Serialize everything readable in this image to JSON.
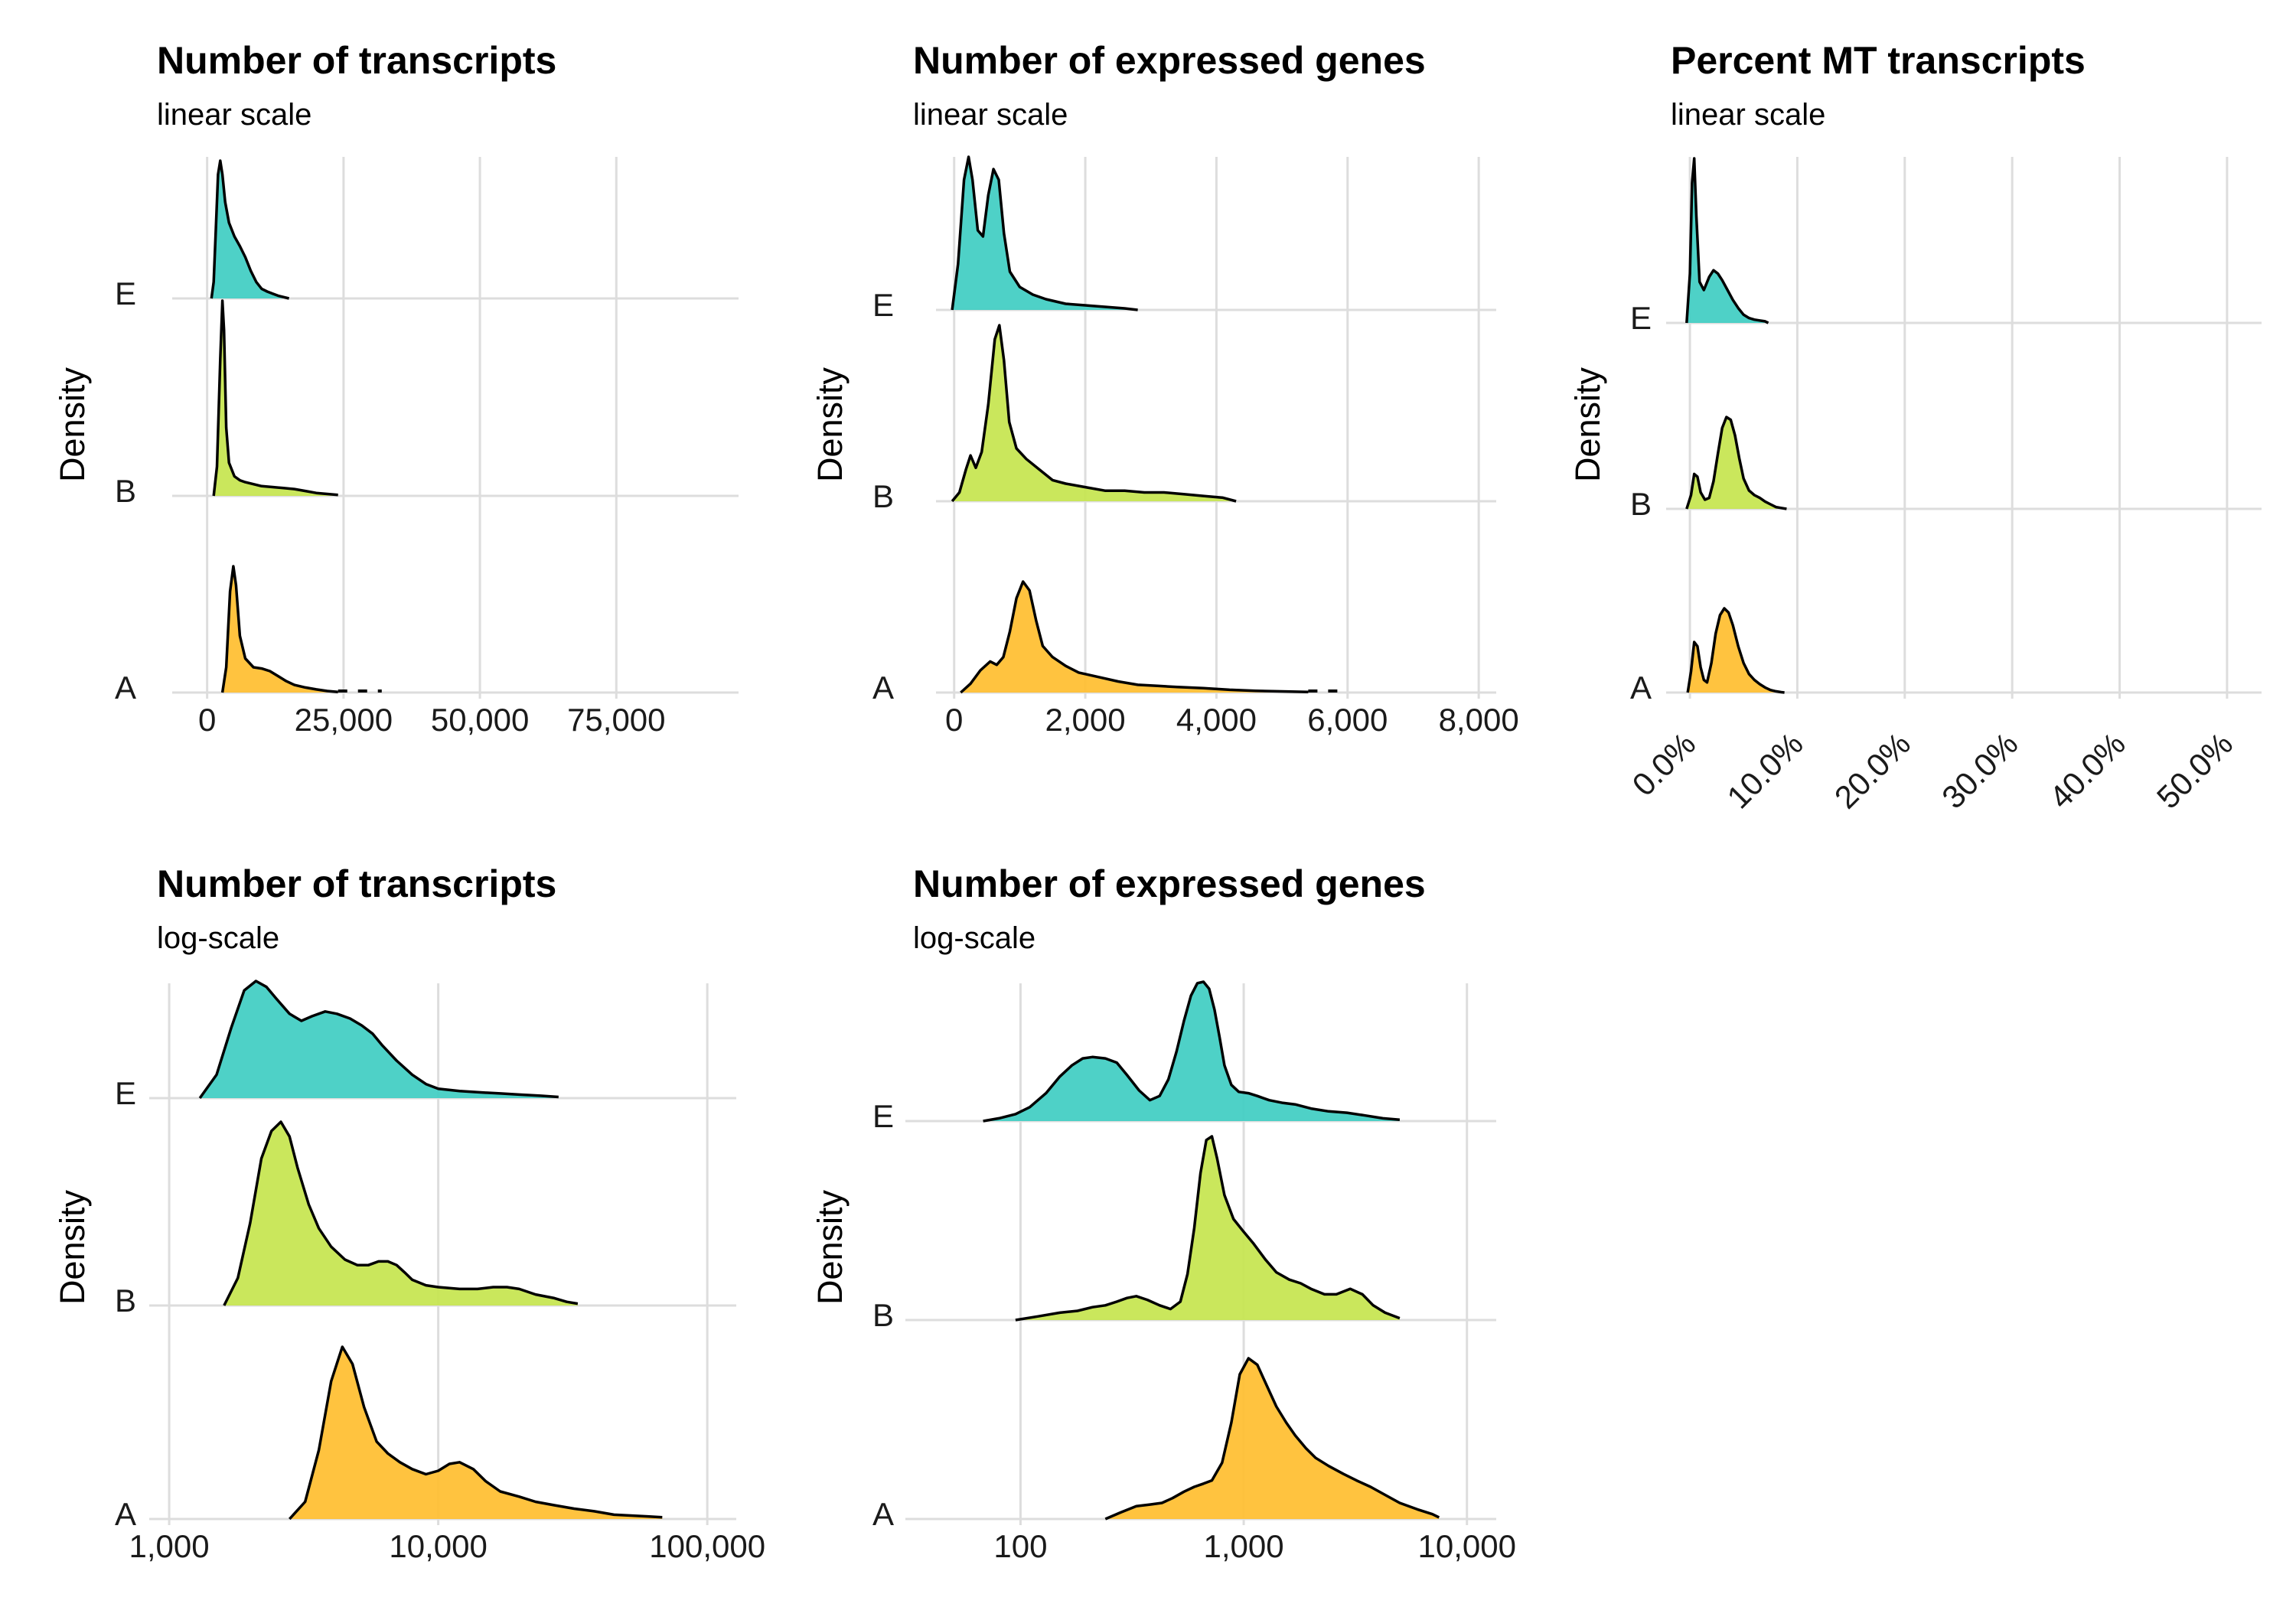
{
  "figure": {
    "background": "#ffffff"
  },
  "colors": {
    "A": "#FFBE2F",
    "B": "#C6E54E",
    "E": "#3FCDC2",
    "outline": "#000000",
    "grid": "#dddddd"
  },
  "panels": [
    {
      "title": "Number of transcripts",
      "subtitle": "linear scale",
      "ylabel": "Density"
    },
    {
      "title": "Number of expressed genes",
      "subtitle": "linear scale",
      "ylabel": "Density"
    },
    {
      "title": "Percent MT transcripts",
      "subtitle": "linear scale",
      "ylabel": "Density"
    },
    {
      "title": "Number of transcripts",
      "subtitle": "log-scale",
      "ylabel": "Density"
    },
    {
      "title": "Number of expressed genes",
      "subtitle": "log-scale",
      "ylabel": "Density"
    }
  ],
  "chart_data": [
    {
      "type": "ridgeline",
      "title": "Number of transcripts",
      "subtitle": "linear scale",
      "ylabel": "Density",
      "xscale": "linear",
      "xlim": [
        -5000,
        96000
      ],
      "xticks": [
        0,
        25000,
        50000,
        75000
      ],
      "xtick_labels": [
        "0",
        "25,000",
        "50,000",
        "75,000"
      ],
      "groups": [
        "A",
        "B",
        "E"
      ],
      "grid": true,
      "series": [
        {
          "name": "A",
          "x": [
            2800,
            3500,
            4200,
            4800,
            5300,
            6000,
            7000,
            8500,
            10000,
            11500,
            13000,
            14500,
            16000,
            18000,
            20000,
            22000,
            24000
          ],
          "y": [
            0,
            0.2,
            0.8,
            1.0,
            0.85,
            0.45,
            0.27,
            0.2,
            0.19,
            0.17,
            0.13,
            0.09,
            0.06,
            0.04,
            0.025,
            0.012,
            0.005
          ],
          "tail_to": 32000
        },
        {
          "name": "B",
          "x": [
            1200,
            1800,
            2400,
            2800,
            3100,
            3500,
            4000,
            5000,
            6000,
            7000,
            8500,
            10000,
            12000,
            14000,
            16000,
            18000,
            20000,
            22000,
            24000
          ],
          "y": [
            0,
            0.15,
            0.7,
            1.0,
            0.85,
            0.35,
            0.17,
            0.1,
            0.08,
            0.07,
            0.06,
            0.05,
            0.045,
            0.04,
            0.035,
            0.025,
            0.015,
            0.01,
            0.005
          ]
        },
        {
          "name": "E",
          "x": [
            800,
            1200,
            1600,
            2000,
            2400,
            2800,
            3300,
            4000,
            5000,
            6000,
            7000,
            8000,
            9000,
            10000,
            11000,
            12000,
            13000,
            14000,
            15000
          ],
          "y": [
            0,
            0.12,
            0.5,
            0.9,
            1.0,
            0.9,
            0.7,
            0.55,
            0.45,
            0.38,
            0.3,
            0.2,
            0.12,
            0.07,
            0.05,
            0.035,
            0.02,
            0.01,
            0
          ]
        }
      ]
    },
    {
      "type": "ridgeline",
      "title": "Number of expressed genes",
      "subtitle": "linear scale",
      "ylabel": "Density",
      "xscale": "linear",
      "xlim": [
        -160,
        8150
      ],
      "xticks": [
        0,
        2000,
        4000,
        6000,
        8000
      ],
      "xtick_labels": [
        "0",
        "2,000",
        "4,000",
        "6,000",
        "8,000"
      ],
      "groups": [
        "A",
        "B",
        "E"
      ],
      "grid": true,
      "series": [
        {
          "name": "A",
          "x": [
            100,
            250,
            400,
            550,
            650,
            750,
            850,
            950,
            1050,
            1150,
            1250,
            1350,
            1500,
            1700,
            1900,
            2200,
            2500,
            2800,
            3100,
            3400,
            3800,
            4200,
            4600,
            5000,
            5400
          ],
          "y": [
            0,
            0.08,
            0.2,
            0.28,
            0.25,
            0.32,
            0.55,
            0.85,
            1.0,
            0.92,
            0.65,
            0.42,
            0.32,
            0.24,
            0.18,
            0.14,
            0.1,
            0.07,
            0.06,
            0.05,
            0.04,
            0.025,
            0.015,
            0.01,
            0.005
          ],
          "tail_to": 6000
        },
        {
          "name": "B",
          "x": [
            -30,
            80,
            180,
            250,
            330,
            420,
            520,
            620,
            690,
            760,
            840,
            950,
            1100,
            1300,
            1500,
            1700,
            2000,
            2300,
            2600,
            2900,
            3200,
            3500,
            3800,
            4100,
            4300
          ],
          "y": [
            0,
            0.05,
            0.18,
            0.26,
            0.19,
            0.28,
            0.55,
            0.92,
            1.0,
            0.8,
            0.45,
            0.3,
            0.24,
            0.18,
            0.12,
            0.1,
            0.08,
            0.06,
            0.06,
            0.05,
            0.05,
            0.04,
            0.03,
            0.02,
            0
          ]
        },
        {
          "name": "E",
          "x": [
            -30,
            60,
            150,
            220,
            280,
            360,
            440,
            520,
            600,
            680,
            760,
            850,
            1000,
            1200,
            1400,
            1700,
            2000,
            2300,
            2600,
            2800
          ],
          "y": [
            0,
            0.3,
            0.85,
            1.0,
            0.85,
            0.52,
            0.48,
            0.75,
            0.92,
            0.85,
            0.5,
            0.25,
            0.15,
            0.1,
            0.07,
            0.04,
            0.03,
            0.02,
            0.01,
            0
          ]
        }
      ]
    },
    {
      "type": "ridgeline",
      "title": "Percent MT transcripts",
      "subtitle": "linear scale",
      "ylabel": "Density",
      "xscale": "linear",
      "xlim": [
        -1.5,
        52.5
      ],
      "xticks": [
        0,
        10,
        20,
        30,
        40,
        50
      ],
      "xtick_labels": [
        "0.0%",
        "10.0%",
        "20.0%",
        "30.0%",
        "40.0%",
        "50.0%"
      ],
      "xtick_rotation": 45,
      "groups": [
        "A",
        "B",
        "E"
      ],
      "grid": true,
      "series": [
        {
          "name": "A",
          "x": [
            -0.2,
            0.1,
            0.4,
            0.7,
            1.0,
            1.3,
            1.6,
            2.0,
            2.4,
            2.8,
            3.2,
            3.6,
            4.0,
            4.5,
            5.0,
            5.5,
            6.0,
            6.5,
            7.0,
            7.5,
            8.0,
            8.5,
            8.8
          ],
          "y": [
            0,
            0.25,
            0.6,
            0.55,
            0.3,
            0.15,
            0.12,
            0.35,
            0.7,
            0.92,
            1.0,
            0.95,
            0.8,
            0.55,
            0.35,
            0.22,
            0.15,
            0.1,
            0.06,
            0.03,
            0.015,
            0.005,
            0
          ]
        },
        {
          "name": "B",
          "x": [
            -0.3,
            0.1,
            0.4,
            0.7,
            1.0,
            1.4,
            1.8,
            2.2,
            2.6,
            3.0,
            3.4,
            3.8,
            4.2,
            4.6,
            5.0,
            5.5,
            6.0,
            6.5,
            7.0,
            7.5,
            8.0,
            8.5,
            9.0
          ],
          "y": [
            0,
            0.15,
            0.38,
            0.35,
            0.18,
            0.1,
            0.12,
            0.3,
            0.6,
            0.88,
            1.0,
            0.97,
            0.8,
            0.55,
            0.33,
            0.2,
            0.15,
            0.12,
            0.08,
            0.05,
            0.02,
            0.01,
            0
          ]
        },
        {
          "name": "E",
          "x": [
            -0.3,
            0.0,
            0.2,
            0.4,
            0.6,
            0.9,
            1.3,
            1.8,
            2.2,
            2.6,
            3.0,
            3.5,
            4.0,
            4.5,
            5.0,
            5.5,
            6.0,
            6.5,
            7.0,
            7.3
          ],
          "y": [
            0,
            0.3,
            0.85,
            1.0,
            0.65,
            0.25,
            0.2,
            0.28,
            0.32,
            0.3,
            0.26,
            0.2,
            0.14,
            0.09,
            0.05,
            0.03,
            0.02,
            0.015,
            0.01,
            0
          ]
        }
      ]
    },
    {
      "type": "ridgeline",
      "title": "Number of transcripts",
      "subtitle": "log-scale",
      "ylabel": "Density",
      "xscale": "log",
      "xlim": [
        900,
        120000
      ],
      "xticks": [
        1000,
        10000,
        100000
      ],
      "xtick_labels": [
        "1,000",
        "10,000",
        "100,000"
      ],
      "groups": [
        "A",
        "B",
        "E"
      ],
      "grid": true,
      "series": [
        {
          "name": "A",
          "x": [
            2800,
            3200,
            3600,
            4000,
            4400,
            4800,
            5300,
            5900,
            6500,
            7200,
            8000,
            9000,
            10000,
            11000,
            12000,
            13500,
            15000,
            17000,
            20000,
            23000,
            27000,
            32000,
            38000,
            45000,
            52000,
            60000,
            68000
          ],
          "y": [
            0,
            0.1,
            0.4,
            0.8,
            1.0,
            0.9,
            0.65,
            0.45,
            0.38,
            0.33,
            0.29,
            0.26,
            0.28,
            0.32,
            0.33,
            0.29,
            0.22,
            0.16,
            0.13,
            0.1,
            0.08,
            0.06,
            0.045,
            0.025,
            0.02,
            0.015,
            0.01
          ]
        },
        {
          "name": "B",
          "x": [
            1600,
            1800,
            2000,
            2200,
            2400,
            2600,
            2800,
            3000,
            3300,
            3600,
            4000,
            4500,
            5000,
            5500,
            6000,
            6500,
            7000,
            7500,
            8000,
            9000,
            10000,
            12000,
            14000,
            16000,
            18000,
            20000,
            23000,
            27000,
            30000,
            33000
          ],
          "y": [
            0,
            0.15,
            0.45,
            0.8,
            0.95,
            1.0,
            0.92,
            0.75,
            0.55,
            0.42,
            0.32,
            0.25,
            0.22,
            0.22,
            0.24,
            0.24,
            0.22,
            0.18,
            0.14,
            0.11,
            0.1,
            0.09,
            0.09,
            0.1,
            0.1,
            0.09,
            0.06,
            0.04,
            0.02,
            0.01
          ]
        },
        {
          "name": "E",
          "x": [
            1300,
            1500,
            1700,
            1900,
            2100,
            2300,
            2500,
            2800,
            3100,
            3400,
            3800,
            4200,
            4700,
            5200,
            5700,
            6200,
            7000,
            8000,
            9000,
            10000,
            12000,
            14000,
            17000,
            20000,
            24000,
            28000
          ],
          "y": [
            0,
            0.2,
            0.6,
            0.92,
            1.0,
            0.95,
            0.85,
            0.72,
            0.66,
            0.7,
            0.74,
            0.72,
            0.68,
            0.62,
            0.55,
            0.45,
            0.32,
            0.2,
            0.12,
            0.08,
            0.06,
            0.05,
            0.04,
            0.03,
            0.02,
            0.01
          ]
        }
      ]
    },
    {
      "type": "ridgeline",
      "title": "Number of expressed genes",
      "subtitle": "log-scale",
      "ylabel": "Density",
      "xscale": "log",
      "xlim": [
        33,
        12500
      ],
      "xticks": [
        100,
        1000,
        10000
      ],
      "xtick_labels": [
        "100",
        "1,000",
        "10,000"
      ],
      "groups": [
        "A",
        "B",
        "E"
      ],
      "grid": true,
      "series": [
        {
          "name": "A",
          "x": [
            240,
            280,
            330,
            380,
            430,
            480,
            540,
            600,
            660,
            720,
            800,
            880,
            960,
            1050,
            1150,
            1250,
            1400,
            1550,
            1700,
            1900,
            2100,
            2400,
            2800,
            3200,
            3700,
            4300,
            5000,
            6000,
            7000,
            7500
          ],
          "y": [
            0,
            0.04,
            0.08,
            0.09,
            0.1,
            0.13,
            0.17,
            0.2,
            0.22,
            0.24,
            0.35,
            0.6,
            0.9,
            1.0,
            0.96,
            0.85,
            0.7,
            0.6,
            0.52,
            0.44,
            0.38,
            0.33,
            0.28,
            0.24,
            0.2,
            0.15,
            0.1,
            0.06,
            0.03,
            0.01
          ]
        },
        {
          "name": "B",
          "x": [
            95,
            120,
            150,
            180,
            210,
            240,
            270,
            300,
            330,
            370,
            420,
            470,
            520,
            560,
            600,
            640,
            680,
            720,
            760,
            820,
            900,
            1000,
            1100,
            1250,
            1400,
            1600,
            1800,
            2000,
            2300,
            2600,
            3000,
            3400,
            3800,
            4300,
            5000
          ],
          "y": [
            0,
            0.02,
            0.04,
            0.05,
            0.07,
            0.08,
            0.1,
            0.12,
            0.13,
            0.11,
            0.08,
            0.06,
            0.1,
            0.25,
            0.5,
            0.8,
            0.98,
            1.0,
            0.88,
            0.68,
            0.55,
            0.48,
            0.42,
            0.33,
            0.26,
            0.22,
            0.2,
            0.17,
            0.14,
            0.14,
            0.17,
            0.14,
            0.08,
            0.04,
            0.01
          ]
        },
        {
          "name": "E",
          "x": [
            68,
            80,
            95,
            110,
            130,
            150,
            170,
            190,
            210,
            240,
            270,
            300,
            340,
            380,
            420,
            460,
            500,
            540,
            580,
            620,
            660,
            700,
            740,
            780,
            820,
            880,
            950,
            1050,
            1150,
            1300,
            1500,
            1700,
            2000,
            2400,
            2900,
            3500,
            4200,
            5000
          ],
          "y": [
            0,
            0.02,
            0.05,
            0.1,
            0.2,
            0.32,
            0.4,
            0.45,
            0.46,
            0.45,
            0.42,
            0.33,
            0.22,
            0.15,
            0.18,
            0.3,
            0.5,
            0.72,
            0.9,
            0.99,
            1.0,
            0.95,
            0.8,
            0.6,
            0.4,
            0.26,
            0.21,
            0.2,
            0.18,
            0.15,
            0.13,
            0.12,
            0.09,
            0.07,
            0.06,
            0.04,
            0.02,
            0.01
          ]
        }
      ]
    }
  ]
}
